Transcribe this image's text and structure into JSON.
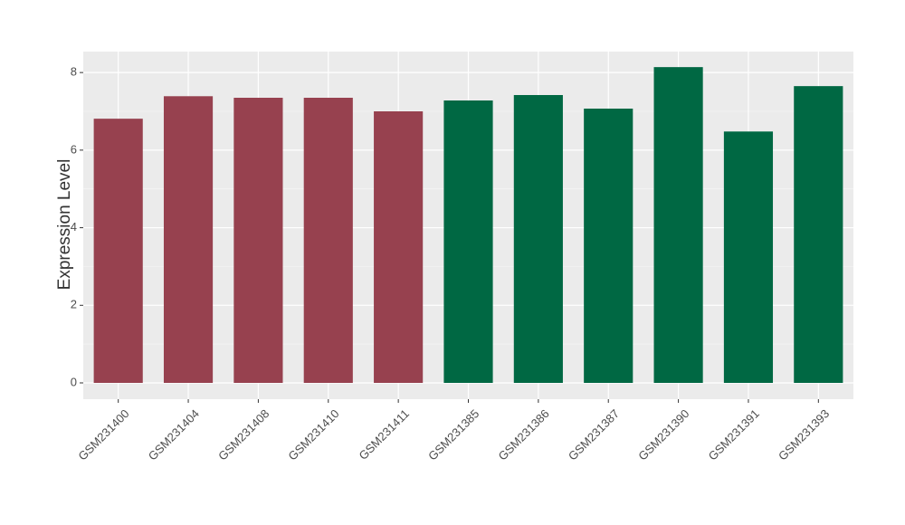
{
  "chart_data": {
    "type": "bar",
    "y_label": "Expression Level",
    "categories": [
      "GSM231400",
      "GSM231404",
      "GSM231408",
      "GSM231410",
      "GSM231411",
      "GSM231385",
      "GSM231386",
      "GSM231387",
      "GSM231390",
      "GSM231391",
      "GSM231393"
    ],
    "values": [
      6.81,
      7.39,
      7.35,
      7.35,
      7.0,
      7.28,
      7.42,
      7.07,
      8.14,
      6.48,
      7.65
    ],
    "colors": [
      "#97414f",
      "#97414f",
      "#97414f",
      "#97414f",
      "#97414f",
      "#006843",
      "#006843",
      "#006843",
      "#006843",
      "#006843",
      "#006843"
    ],
    "ylim": [
      -0.42,
      8.54
    ],
    "yticks": [
      0,
      2,
      4,
      6,
      8
    ],
    "grid": true
  }
}
